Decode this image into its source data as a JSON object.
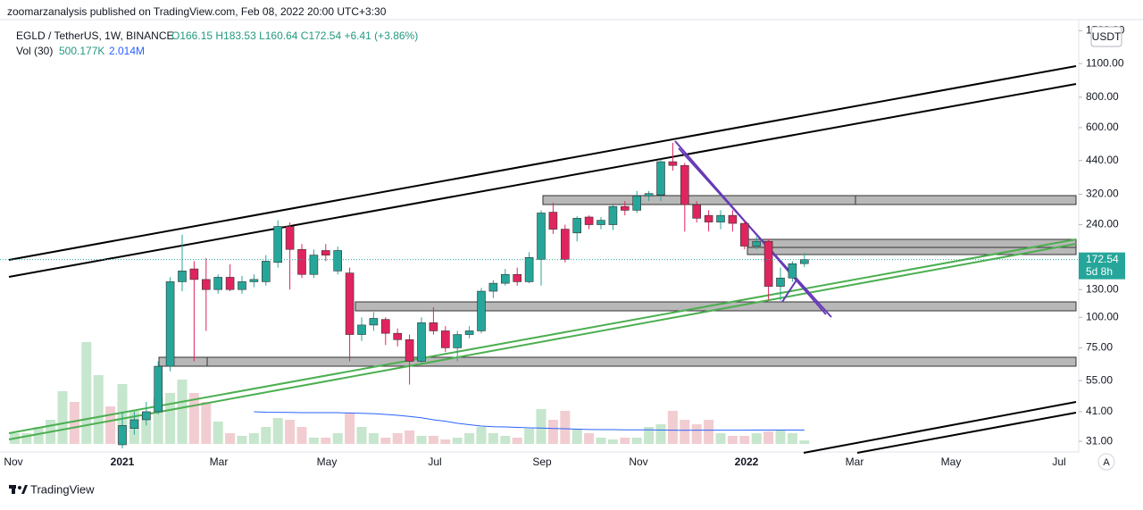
{
  "header": {
    "publisher": "zoomarzanalysis published on TradingView.com, Feb 08, 2022 20:00 UTC+3:30"
  },
  "legend": {
    "symbol": "EGLD / TetherUS, 1W, BINANCE",
    "ohlc": "O166.15  H183.53  L160.64  C172.54  +6.41 (+3.86%)",
    "volume_title": "Vol (30)",
    "volume_value": "500.177K",
    "volume_ma": "2.014M"
  },
  "chart": {
    "type": "candlestick",
    "scale": "log",
    "ylim": [
      27.8,
      1665
    ],
    "yticks": [
      {
        "value": 1500,
        "label": "1500.00"
      },
      {
        "value": 1100,
        "label": "1100.00"
      },
      {
        "value": 800,
        "label": "800.00"
      },
      {
        "value": 600,
        "label": "600.00"
      },
      {
        "value": 440,
        "label": "440.00"
      },
      {
        "value": 320,
        "label": "320.00"
      },
      {
        "value": 240,
        "label": "240.00"
      },
      {
        "value": 130,
        "label": "130.00"
      },
      {
        "value": 100,
        "label": "100.00"
      },
      {
        "value": 75,
        "label": "75.00"
      },
      {
        "value": 55,
        "label": "55.00"
      },
      {
        "value": 41,
        "label": "41.00"
      },
      {
        "value": 31,
        "label": "31.00"
      }
    ],
    "last_price": {
      "value": 172.54,
      "label": "172.54",
      "countdown": "5d 8h"
    },
    "up_color": "#26a69a",
    "down_color": "#e0245e",
    "volume_up_color": "#c6e6cd",
    "volume_down_color": "#f1cdd1",
    "candles": [
      [
        30,
        41,
        29,
        36
      ],
      [
        35,
        41,
        33,
        38
      ],
      [
        38,
        45,
        36,
        41
      ],
      [
        41,
        66,
        40,
        63
      ],
      [
        63,
        146,
        60,
        140
      ],
      [
        140,
        218,
        128,
        155
      ],
      [
        158,
        170,
        66,
        143
      ],
      [
        143,
        175,
        88,
        130
      ],
      [
        130,
        150,
        125,
        146
      ],
      [
        146,
        165,
        128,
        130
      ],
      [
        130,
        148,
        125,
        140
      ],
      [
        140,
        150,
        133,
        143
      ],
      [
        140,
        180,
        135,
        170
      ],
      [
        168,
        250,
        160,
        236
      ],
      [
        236,
        245,
        130,
        190
      ],
      [
        190,
        200,
        145,
        150
      ],
      [
        150,
        190,
        145,
        180
      ],
      [
        188,
        200,
        170,
        180
      ],
      [
        155,
        195,
        150,
        188
      ],
      [
        152,
        160,
        66,
        85
      ],
      [
        85,
        100,
        80,
        93
      ],
      [
        93,
        105,
        88,
        99
      ],
      [
        98,
        100,
        77,
        86
      ],
      [
        86,
        90,
        76,
        81
      ],
      [
        81,
        85,
        53,
        66
      ],
      [
        66,
        100,
        65,
        95
      ],
      [
        95,
        110,
        85,
        88
      ],
      [
        88,
        92,
        72,
        75
      ],
      [
        75,
        88,
        66,
        85
      ],
      [
        85,
        92,
        82,
        88
      ],
      [
        88,
        132,
        86,
        128
      ],
      [
        128,
        142,
        120,
        138
      ],
      [
        138,
        158,
        135,
        150
      ],
      [
        150,
        160,
        135,
        140
      ],
      [
        140,
        185,
        138,
        176
      ],
      [
        173,
        275,
        135,
        268
      ],
      [
        270,
        295,
        220,
        230
      ],
      [
        230,
        240,
        168,
        173
      ],
      [
        222,
        260,
        205,
        255
      ],
      [
        258,
        262,
        230,
        240
      ],
      [
        240,
        258,
        230,
        250
      ],
      [
        240,
        290,
        228,
        285
      ],
      [
        285,
        300,
        262,
        275
      ],
      [
        275,
        330,
        268,
        315
      ],
      [
        315,
        330,
        300,
        322
      ],
      [
        318,
        445,
        300,
        435
      ],
      [
        435,
        520,
        400,
        420
      ],
      [
        420,
        430,
        225,
        290
      ],
      [
        290,
        300,
        245,
        255
      ],
      [
        262,
        275,
        225,
        246
      ],
      [
        246,
        275,
        230,
        262
      ],
      [
        262,
        275,
        225,
        243
      ],
      [
        243,
        250,
        190,
        196
      ],
      [
        196,
        215,
        190,
        205
      ],
      [
        205,
        210,
        118,
        134
      ],
      [
        134,
        160,
        117,
        145
      ],
      [
        145,
        170,
        140,
        166
      ],
      [
        166.15,
        183.53,
        160.64,
        172.54
      ]
    ],
    "pre_volume_up": [
      true,
      true,
      true,
      true,
      true,
      false,
      true,
      true,
      false
    ],
    "volume": [
      1.56,
      1.56,
      2.47,
      3.51,
      7.67,
      6.11,
      14.82,
      10.01,
      5.46,
      8.71,
      4.81,
      4.16,
      6.76,
      7.41,
      9.36,
      7.41,
      6.11,
      3.25,
      1.56,
      1.17,
      1.56,
      2.47,
      3.77,
      3.51,
      2.47,
      0.91,
      0.91,
      1.56,
      4.55,
      2.47,
      1.56,
      0.91,
      1.56,
      1.95,
      1.17,
      1.17,
      0.65,
      0.91,
      1.56,
      2.47,
      1.56,
      1.17,
      0.91,
      2.21,
      5.07,
      3.51,
      4.81,
      2.21,
      1.56,
      0.91,
      0.65,
      0.91,
      0.91,
      2.47,
      2.86,
      4.81,
      3.51,
      2.86,
      3.51,
      1.56,
      1.17,
      1.17,
      1.56,
      1.82,
      1.95,
      1.56,
      0.500177
    ],
    "volume_ma_values": [
      null,
      null,
      null,
      null,
      null,
      null,
      null,
      null,
      null,
      null,
      null,
      null,
      null,
      null,
      null,
      null,
      null,
      null,
      null,
      null,
      4.68,
      4.62,
      4.6,
      4.58,
      4.55,
      4.55,
      4.55,
      4.55,
      4.5,
      4.45,
      4.4,
      4.29,
      4.16,
      4.0,
      3.8,
      3.51,
      3.3,
      3.0,
      2.8,
      2.6,
      2.5,
      2.47,
      2.4,
      2.34,
      2.3,
      2.25,
      2.21,
      2.15,
      2.1,
      2.08,
      2.08,
      2.05,
      2.05,
      2.05,
      2.02,
      2.0,
      1.98,
      2.0,
      2.0,
      2.0,
      2.0,
      2.0,
      2.01,
      2.01,
      2.01,
      2.014,
      2.014
    ],
    "categories": [
      "Nov",
      "2021",
      "Mar",
      "May",
      "Jul",
      "Sep",
      "Nov",
      "2022",
      "Mar",
      "May",
      "Jul"
    ],
    "currency": "USDT",
    "auto": "A"
  },
  "footer": {
    "brand": "TradingView"
  }
}
